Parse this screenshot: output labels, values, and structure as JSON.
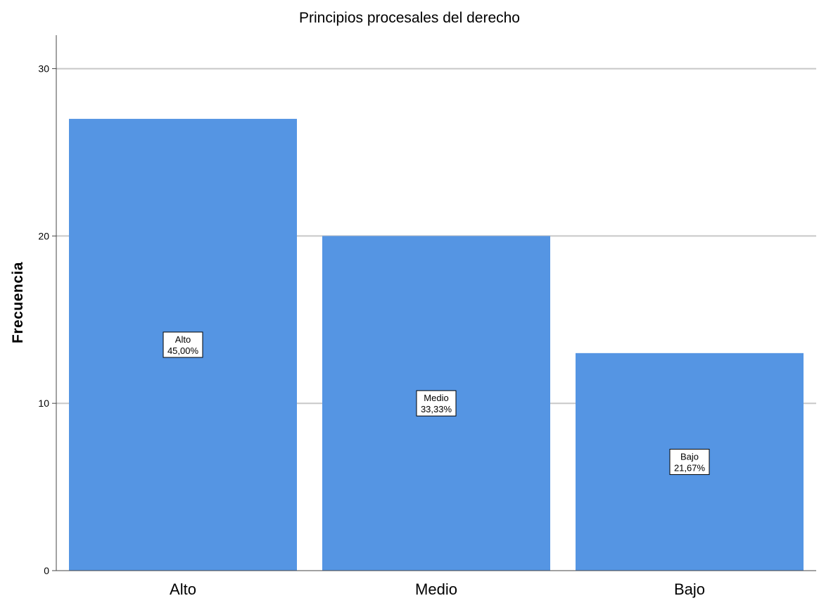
{
  "chart_data": {
    "type": "bar",
    "title": "Principios procesales del derecho",
    "xlabel": "",
    "ylabel": "Frecuencia",
    "categories": [
      "Alto",
      "Medio",
      "Bajo"
    ],
    "values": [
      27,
      20,
      13
    ],
    "data_labels": [
      {
        "category": "Alto",
        "percent": "45,00%"
      },
      {
        "category": "Medio",
        "percent": "33,33%"
      },
      {
        "category": "Bajo",
        "percent": "21,67%"
      }
    ],
    "yticks": [
      0,
      10,
      20,
      30
    ],
    "ylim": [
      0,
      32
    ],
    "grid": true,
    "bar_color": "#5595e3"
  }
}
